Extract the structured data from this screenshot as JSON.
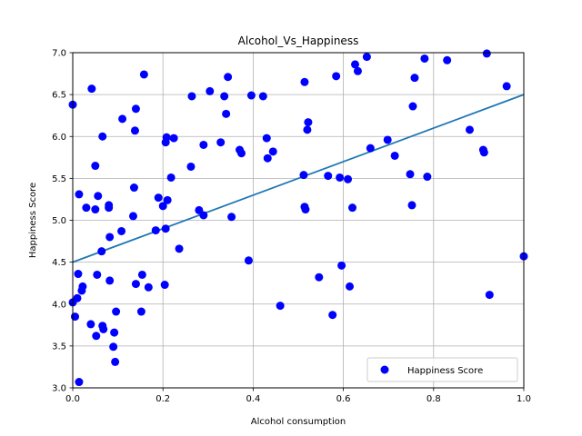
{
  "chart_data": {
    "type": "scatter",
    "title": "Alcohol_Vs_Happiness",
    "xlabel": "Alcohol consumption",
    "ylabel": "Happiness Score",
    "xlim": [
      0.0,
      1.0
    ],
    "ylim": [
      3.0,
      7.0
    ],
    "x_ticks": [
      "0.0",
      "0.2",
      "0.4",
      "0.6",
      "0.8",
      "1.0"
    ],
    "y_ticks": [
      "3.0",
      "3.5",
      "4.0",
      "4.5",
      "5.0",
      "5.5",
      "6.0",
      "6.5",
      "7.0"
    ],
    "grid": true,
    "legend": {
      "entries": [
        "Happiness Score"
      ],
      "placement": "lower-right"
    },
    "colors": {
      "points": "#0000ff",
      "fit_line": "#1f77b4"
    },
    "series": [
      {
        "name": "Happiness Score",
        "points": [
          [
            0.0,
            6.38
          ],
          [
            0.0,
            4.02
          ],
          [
            0.005,
            3.85
          ],
          [
            0.01,
            4.07
          ],
          [
            0.012,
            4.36
          ],
          [
            0.014,
            5.31
          ],
          [
            0.014,
            3.07
          ],
          [
            0.02,
            4.16
          ],
          [
            0.022,
            4.21
          ],
          [
            0.03,
            5.15
          ],
          [
            0.04,
            3.76
          ],
          [
            0.042,
            6.57
          ],
          [
            0.05,
            5.13
          ],
          [
            0.05,
            5.65
          ],
          [
            0.052,
            3.62
          ],
          [
            0.054,
            4.35
          ],
          [
            0.056,
            5.29
          ],
          [
            0.064,
            4.63
          ],
          [
            0.066,
            3.74
          ],
          [
            0.066,
            6.0
          ],
          [
            0.068,
            3.7
          ],
          [
            0.08,
            5.18
          ],
          [
            0.08,
            5.15
          ],
          [
            0.082,
            4.28
          ],
          [
            0.082,
            4.8
          ],
          [
            0.09,
            3.49
          ],
          [
            0.092,
            3.66
          ],
          [
            0.094,
            3.31
          ],
          [
            0.096,
            3.91
          ],
          [
            0.108,
            4.87
          ],
          [
            0.11,
            6.21
          ],
          [
            0.134,
            5.05
          ],
          [
            0.136,
            5.39
          ],
          [
            0.138,
            6.07
          ],
          [
            0.14,
            6.33
          ],
          [
            0.14,
            4.24
          ],
          [
            0.152,
            3.91
          ],
          [
            0.154,
            4.35
          ],
          [
            0.158,
            6.74
          ],
          [
            0.168,
            4.2
          ],
          [
            0.184,
            4.88
          ],
          [
            0.19,
            5.27
          ],
          [
            0.2,
            5.17
          ],
          [
            0.204,
            4.23
          ],
          [
            0.206,
            5.93
          ],
          [
            0.206,
            4.9
          ],
          [
            0.208,
            5.99
          ],
          [
            0.21,
            5.24
          ],
          [
            0.218,
            5.51
          ],
          [
            0.224,
            5.98
          ],
          [
            0.236,
            4.66
          ],
          [
            0.262,
            5.64
          ],
          [
            0.264,
            6.48
          ],
          [
            0.28,
            5.12
          ],
          [
            0.29,
            5.9
          ],
          [
            0.29,
            5.06
          ],
          [
            0.304,
            6.54
          ],
          [
            0.328,
            5.93
          ],
          [
            0.336,
            6.48
          ],
          [
            0.34,
            6.27
          ],
          [
            0.344,
            6.71
          ],
          [
            0.352,
            5.04
          ],
          [
            0.37,
            5.84
          ],
          [
            0.374,
            5.8
          ],
          [
            0.39,
            4.52
          ],
          [
            0.396,
            6.49
          ],
          [
            0.422,
            6.48
          ],
          [
            0.43,
            5.98
          ],
          [
            0.432,
            5.74
          ],
          [
            0.444,
            5.82
          ],
          [
            0.46,
            3.98
          ],
          [
            0.512,
            5.54
          ],
          [
            0.514,
            6.65
          ],
          [
            0.514,
            5.16
          ],
          [
            0.516,
            5.13
          ],
          [
            0.52,
            6.08
          ],
          [
            0.522,
            6.17
          ],
          [
            0.546,
            4.32
          ],
          [
            0.566,
            5.53
          ],
          [
            0.576,
            3.87
          ],
          [
            0.584,
            6.72
          ],
          [
            0.592,
            5.51
          ],
          [
            0.596,
            4.46
          ],
          [
            0.61,
            5.49
          ],
          [
            0.614,
            4.21
          ],
          [
            0.62,
            5.15
          ],
          [
            0.626,
            6.86
          ],
          [
            0.632,
            6.78
          ],
          [
            0.652,
            6.95
          ],
          [
            0.66,
            5.86
          ],
          [
            0.698,
            5.96
          ],
          [
            0.714,
            5.77
          ],
          [
            0.748,
            5.55
          ],
          [
            0.752,
            5.18
          ],
          [
            0.754,
            6.36
          ],
          [
            0.758,
            6.7
          ],
          [
            0.78,
            6.93
          ],
          [
            0.786,
            5.52
          ],
          [
            0.83,
            6.91
          ],
          [
            0.88,
            6.08
          ],
          [
            0.91,
            5.84
          ],
          [
            0.912,
            5.81
          ],
          [
            0.918,
            6.99
          ],
          [
            0.924,
            4.11
          ],
          [
            0.962,
            6.6
          ],
          [
            1.0,
            4.57
          ]
        ]
      }
    ],
    "fit_line": {
      "x": [
        0.0,
        1.0
      ],
      "y": [
        4.5,
        6.5
      ]
    }
  }
}
